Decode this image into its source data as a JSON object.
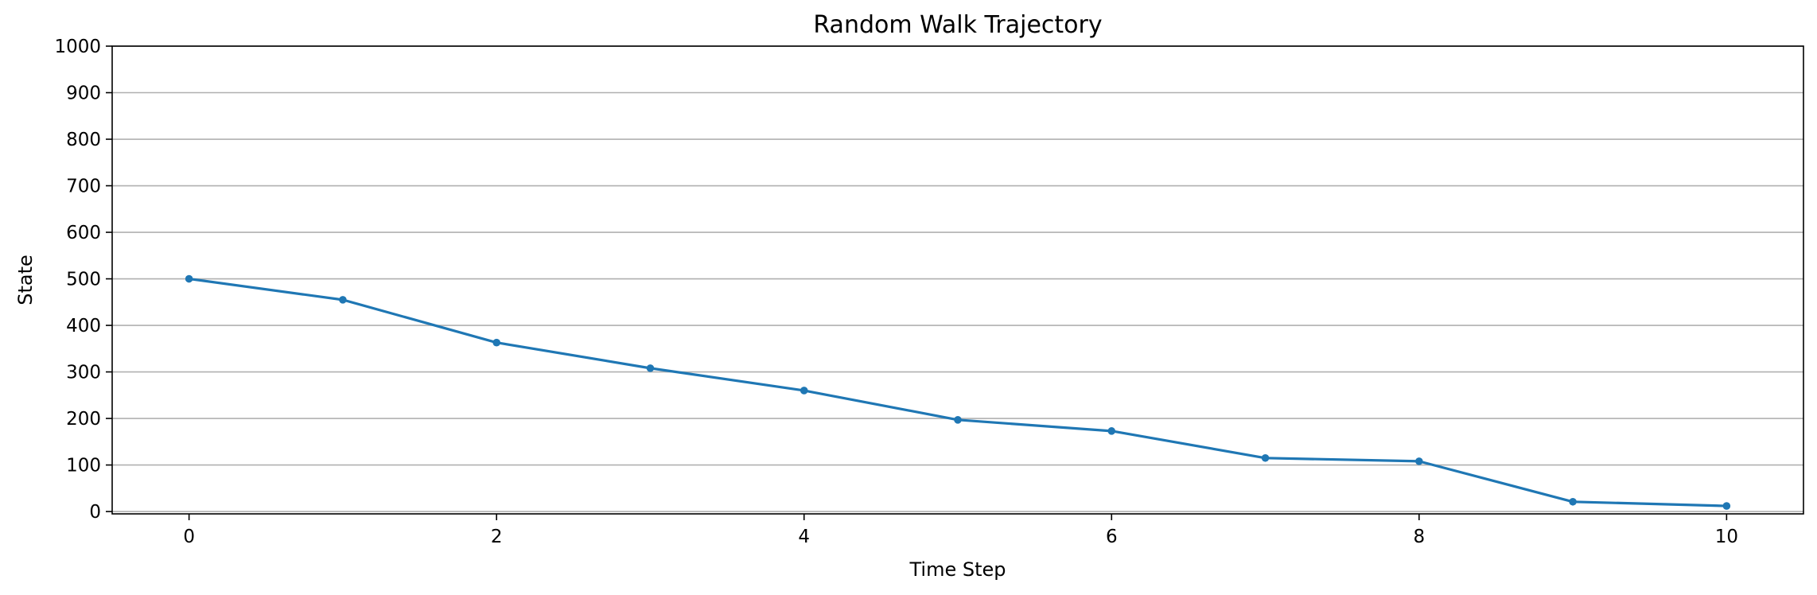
{
  "chart_data": {
    "type": "line",
    "title": "Random Walk Trajectory",
    "xlabel": "Time Step",
    "ylabel": "State",
    "xlim": [
      -0.5,
      10.5
    ],
    "ylim": [
      -5,
      1000
    ],
    "xticks": [
      0,
      2,
      4,
      6,
      8,
      10
    ],
    "yticks": [
      0,
      100,
      200,
      300,
      400,
      500,
      600,
      700,
      800,
      900,
      1000
    ],
    "grid": "y-axis",
    "legend": "none",
    "series": [
      {
        "x": [
          0,
          1,
          2,
          3,
          4,
          5,
          6,
          7,
          8,
          9,
          10
        ],
        "values": [
          500,
          455,
          363,
          308,
          260,
          197,
          173,
          115,
          108,
          21,
          12
        ],
        "color": "#1f77b4",
        "marker": "circle"
      }
    ]
  }
}
